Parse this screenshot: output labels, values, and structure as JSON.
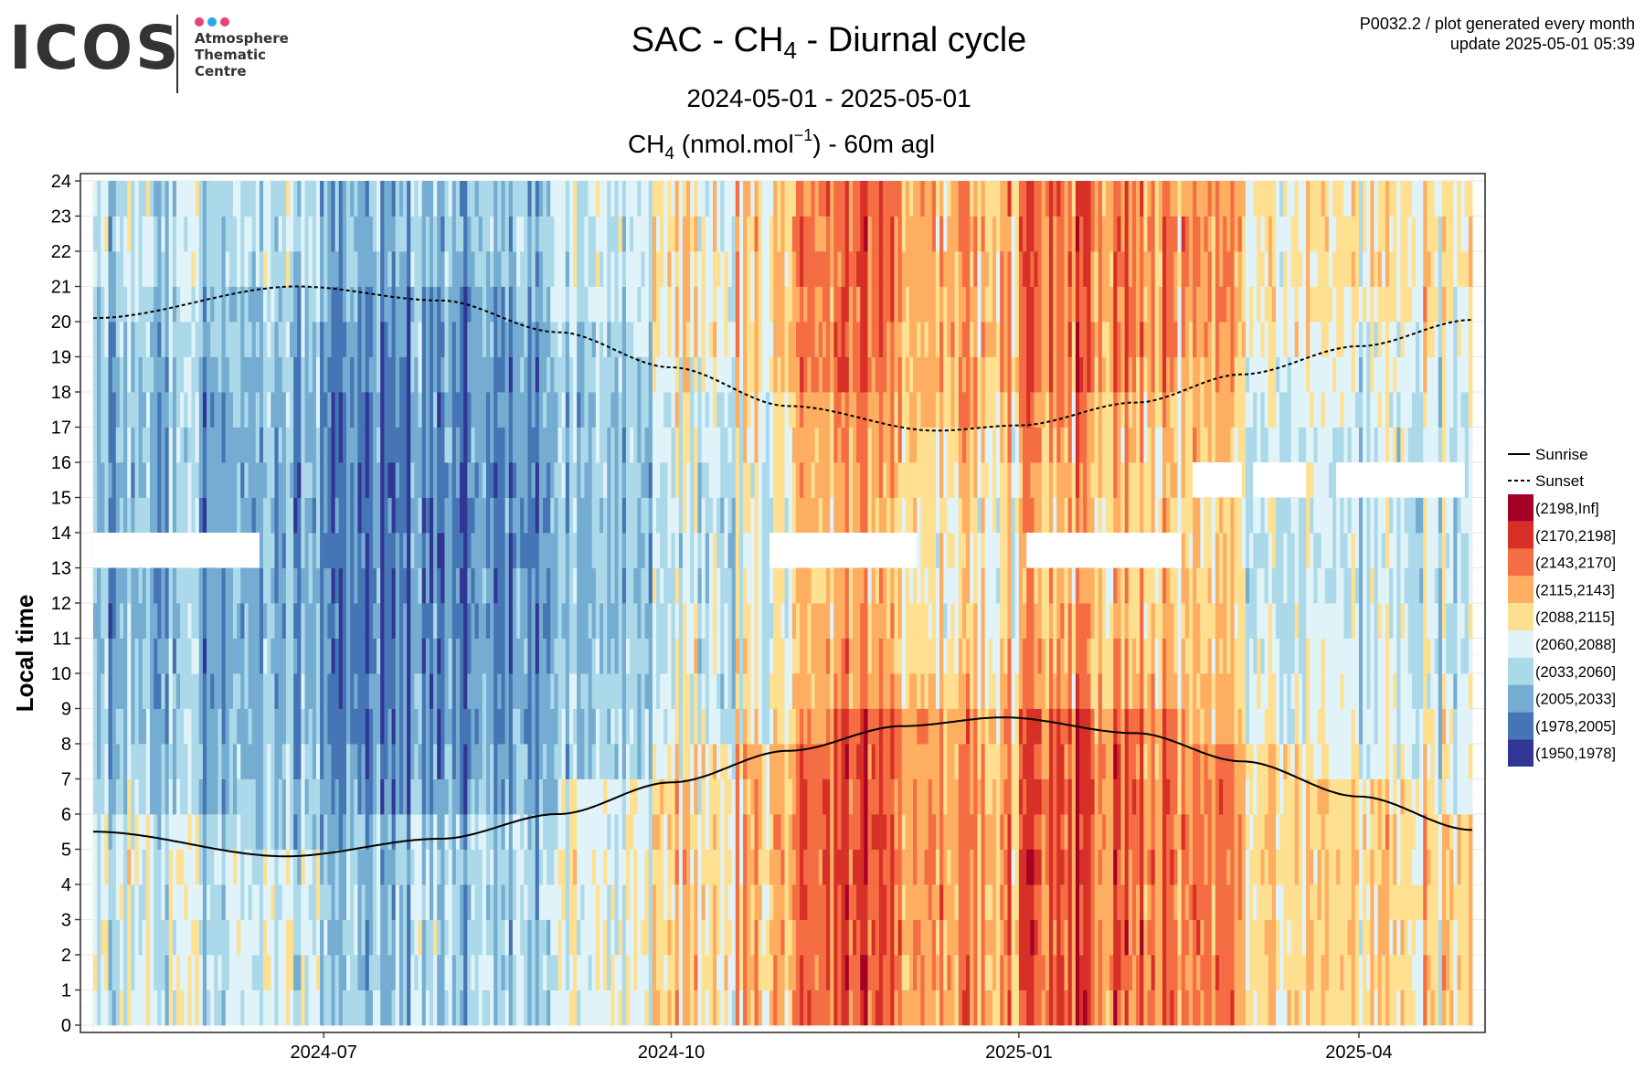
{
  "logo": {
    "wordmark": "ICOS",
    "subtitle": "Atmosphere\nThematic\nCentre",
    "dot_colors": [
      "#e8407a",
      "#2aa8e8",
      "#e8407a"
    ]
  },
  "meta": {
    "line1": "P0032.2 / plot generated every month",
    "line2": "update  2025-05-01 05:39"
  },
  "chart_data": {
    "type": "heatmap",
    "title": {
      "prefix": "SAC - CH",
      "sub": "4",
      "suffix": " - Diurnal cycle"
    },
    "date_range": "2024-05-01 - 2025-05-01",
    "variable_title": {
      "a": "CH",
      "a_sub": "4",
      "b": " (nmol.mol",
      "b_sup": "−1",
      "c": ") - 60m agl"
    },
    "ylabel": "Local time",
    "x_range": [
      "2024-05-01",
      "2025-05-01"
    ],
    "x_ticks": [
      "2024-07",
      "2024-10",
      "2025-01",
      "2025-04"
    ],
    "x_tick_dates": [
      "2024-07-01",
      "2024-10-01",
      "2025-01-01",
      "2025-04-01"
    ],
    "y_range": [
      0,
      24
    ],
    "y_ticks": [
      0,
      1,
      2,
      3,
      4,
      5,
      6,
      7,
      8,
      9,
      10,
      11,
      12,
      13,
      14,
      15,
      16,
      17,
      18,
      19,
      20,
      21,
      22,
      23,
      24
    ],
    "grid": true,
    "legend_position": "right",
    "legend_lines": [
      {
        "label": "Sunrise",
        "style": "solid"
      },
      {
        "label": "Sunset",
        "style": "dotted"
      }
    ],
    "color_bins": [
      {
        "label": "(2198,Inf]",
        "color": "#a50026"
      },
      {
        "label": "(2170,2198]",
        "color": "#d73027"
      },
      {
        "label": "(2143,2170]",
        "color": "#f46d43"
      },
      {
        "label": "(2115,2143]",
        "color": "#fdae61"
      },
      {
        "label": "(2088,2115]",
        "color": "#fee090"
      },
      {
        "label": "(2060,2088]",
        "color": "#e0f3f8"
      },
      {
        "label": "(2033,2060]",
        "color": "#abd9e9"
      },
      {
        "label": "(2005,2033]",
        "color": "#74add1"
      },
      {
        "label": "(1978,2005]",
        "color": "#4575b4"
      },
      {
        "label": "(1950,1978]",
        "color": "#313695"
      }
    ],
    "sunrise_hours": [
      {
        "date": "2024-05-01",
        "h": 5.5
      },
      {
        "date": "2024-06-21",
        "h": 4.8
      },
      {
        "date": "2024-08-01",
        "h": 5.3
      },
      {
        "date": "2024-09-01",
        "h": 6.0
      },
      {
        "date": "2024-10-01",
        "h": 6.9
      },
      {
        "date": "2024-11-01",
        "h": 7.8
      },
      {
        "date": "2024-12-01",
        "h": 8.5
      },
      {
        "date": "2024-12-28",
        "h": 8.75
      },
      {
        "date": "2025-02-01",
        "h": 8.3
      },
      {
        "date": "2025-03-01",
        "h": 7.5
      },
      {
        "date": "2025-04-01",
        "h": 6.5
      },
      {
        "date": "2025-05-01",
        "h": 5.55
      }
    ],
    "sunset_hours": [
      {
        "date": "2024-05-01",
        "h": 20.1
      },
      {
        "date": "2024-06-24",
        "h": 21.0
      },
      {
        "date": "2024-08-01",
        "h": 20.6
      },
      {
        "date": "2024-09-01",
        "h": 19.7
      },
      {
        "date": "2024-10-01",
        "h": 18.7
      },
      {
        "date": "2024-11-01",
        "h": 17.6
      },
      {
        "date": "2024-12-10",
        "h": 16.9
      },
      {
        "date": "2025-01-01",
        "h": 17.05
      },
      {
        "date": "2025-02-01",
        "h": 17.7
      },
      {
        "date": "2025-03-01",
        "h": 18.5
      },
      {
        "date": "2025-04-01",
        "h": 19.3
      },
      {
        "date": "2025-05-01",
        "h": 20.05
      }
    ],
    "pattern_note_free": true,
    "daily_regime": [
      {
        "from": "2024-05-01",
        "to": "2024-06-10",
        "level": 3.0
      },
      {
        "from": "2024-06-10",
        "to": "2024-06-30",
        "level": 2.8
      },
      {
        "from": "2024-06-30",
        "to": "2024-08-01",
        "level": 1.8
      },
      {
        "from": "2024-08-01",
        "to": "2024-08-31",
        "level": 1.9
      },
      {
        "from": "2024-08-31",
        "to": "2024-10-01",
        "level": 3.4
      },
      {
        "from": "2024-10-01",
        "to": "2024-11-01",
        "level": 4.2
      },
      {
        "from": "2024-11-01",
        "to": "2024-12-01",
        "level": 6.2
      },
      {
        "from": "2024-12-01",
        "to": "2025-01-01",
        "level": 5.3
      },
      {
        "from": "2025-01-01",
        "to": "2025-02-01",
        "level": 6.4
      },
      {
        "from": "2025-02-01",
        "to": "2025-03-01",
        "level": 5.8
      },
      {
        "from": "2025-03-01",
        "to": "2025-04-01",
        "level": 4.2
      },
      {
        "from": "2025-04-01",
        "to": "2025-05-01",
        "level": 4.0
      }
    ],
    "missing_blocks": [
      {
        "from": "2024-05-01",
        "to": "2024-06-14",
        "h0": 13,
        "h1": 14
      },
      {
        "from": "2024-10-27",
        "to": "2024-12-05",
        "h0": 13,
        "h1": 14
      },
      {
        "from": "2025-01-03",
        "to": "2025-02-13",
        "h0": 13,
        "h1": 14
      },
      {
        "from": "2025-02-16",
        "to": "2025-03-01",
        "h0": 15,
        "h1": 16
      },
      {
        "from": "2025-03-04",
        "to": "2025-03-18",
        "h0": 15,
        "h1": 16
      },
      {
        "from": "2025-03-26",
        "to": "2025-04-29",
        "h0": 15,
        "h1": 16
      }
    ]
  }
}
